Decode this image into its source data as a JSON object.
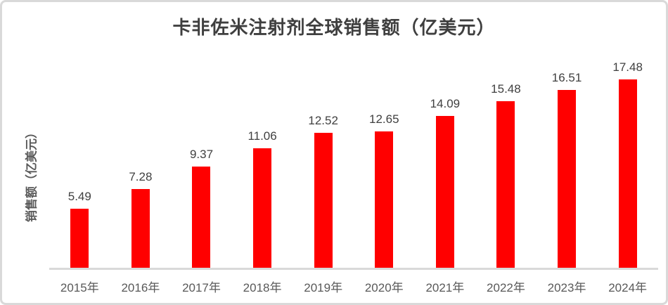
{
  "card": {
    "background": "#ffffff",
    "border_color": "#d9d9d9"
  },
  "chart_data": {
    "type": "bar",
    "title": "卡非佐米注射剂全球销售额（亿美元）",
    "xlabel": "",
    "ylabel": "销售额（亿美元）",
    "categories": [
      "2015年",
      "2016年",
      "2017年",
      "2018年",
      "2019年",
      "2020年",
      "2021年",
      "2022年",
      "2023年",
      "2024年"
    ],
    "values": [
      5.49,
      7.28,
      9.37,
      11.06,
      12.52,
      12.65,
      14.09,
      15.48,
      16.51,
      17.48
    ],
    "ylim": [
      0,
      18
    ],
    "grid": false,
    "legend": false,
    "data_labels": true,
    "bar_color": "#ff0000",
    "title_color": "#3f3f3f",
    "data_label_color": "#404040",
    "tick_label_color": "#595959",
    "axis_line_color": "#d9d9d9"
  }
}
